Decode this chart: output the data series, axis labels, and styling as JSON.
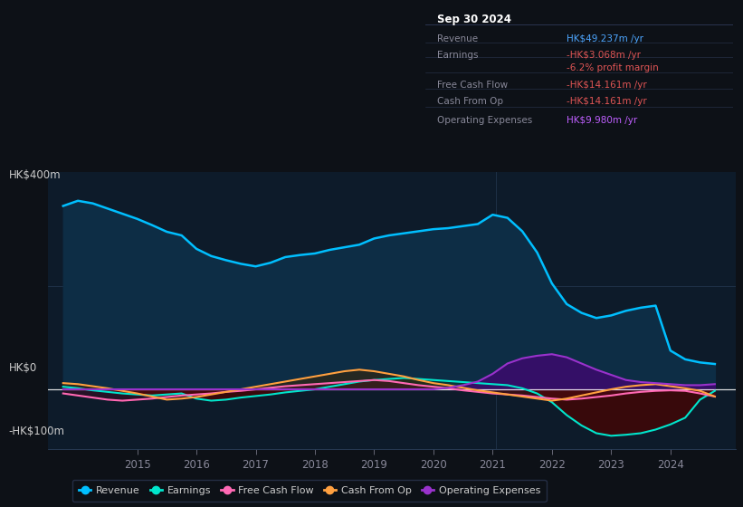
{
  "bg_color": "#0d1117",
  "plot_bg_color": "#0d1b2a",
  "title_box": {
    "date": "Sep 30 2024",
    "rows": [
      {
        "label": "Revenue",
        "value": "HK$49.237m /yr",
        "value_color": "#4da6ff"
      },
      {
        "label": "Earnings",
        "value": "-HK$3.068m /yr",
        "value_color": "#e05555"
      },
      {
        "label": "",
        "value": "-6.2% profit margin",
        "value_color": "#e05555"
      },
      {
        "label": "Free Cash Flow",
        "value": "-HK$14.161m /yr",
        "value_color": "#e05555"
      },
      {
        "label": "Cash From Op",
        "value": "-HK$14.161m /yr",
        "value_color": "#e05555"
      },
      {
        "label": "Operating Expenses",
        "value": "HK$9.980m /yr",
        "value_color": "#bf5fff"
      }
    ]
  },
  "ylabel_top": "HK$400m",
  "ylabel_zero": "HK$0",
  "ylabel_bottom": "-HK$100m",
  "ylim": [
    -115,
    420
  ],
  "xlim_start": 2013.5,
  "xlim_end": 2025.1,
  "years": [
    2013.75,
    2014.0,
    2014.25,
    2014.5,
    2014.75,
    2015.0,
    2015.25,
    2015.5,
    2015.75,
    2016.0,
    2016.25,
    2016.5,
    2016.75,
    2017.0,
    2017.25,
    2017.5,
    2017.75,
    2018.0,
    2018.25,
    2018.5,
    2018.75,
    2019.0,
    2019.25,
    2019.5,
    2019.75,
    2020.0,
    2020.25,
    2020.5,
    2020.75,
    2021.0,
    2021.25,
    2021.5,
    2021.75,
    2022.0,
    2022.25,
    2022.5,
    2022.75,
    2023.0,
    2023.25,
    2023.5,
    2023.75,
    2024.0,
    2024.25,
    2024.5,
    2024.75
  ],
  "revenue": [
    355,
    365,
    360,
    350,
    340,
    330,
    318,
    305,
    298,
    272,
    258,
    250,
    243,
    238,
    245,
    256,
    260,
    263,
    270,
    275,
    280,
    292,
    298,
    302,
    306,
    310,
    312,
    316,
    320,
    338,
    332,
    306,
    265,
    205,
    165,
    148,
    138,
    143,
    152,
    158,
    162,
    75,
    58,
    52,
    49
  ],
  "earnings": [
    5,
    2,
    -2,
    -5,
    -8,
    -10,
    -12,
    -10,
    -8,
    -18,
    -22,
    -20,
    -16,
    -13,
    -10,
    -6,
    -3,
    0,
    5,
    10,
    15,
    18,
    20,
    22,
    20,
    18,
    16,
    14,
    12,
    10,
    8,
    2,
    -8,
    -25,
    -50,
    -70,
    -85,
    -90,
    -88,
    -85,
    -78,
    -68,
    -55,
    -20,
    -3
  ],
  "free_cash_flow": [
    -8,
    -12,
    -16,
    -20,
    -22,
    -20,
    -18,
    -15,
    -12,
    -10,
    -8,
    -5,
    -3,
    0,
    3,
    6,
    8,
    10,
    12,
    14,
    16,
    18,
    16,
    12,
    8,
    5,
    2,
    -2,
    -5,
    -8,
    -10,
    -12,
    -15,
    -18,
    -20,
    -18,
    -15,
    -12,
    -8,
    -5,
    -3,
    -2,
    -3,
    -8,
    -14
  ],
  "cash_from_op": [
    12,
    10,
    6,
    2,
    -3,
    -8,
    -14,
    -20,
    -18,
    -15,
    -10,
    -5,
    0,
    5,
    10,
    15,
    20,
    25,
    30,
    35,
    38,
    35,
    30,
    25,
    18,
    12,
    8,
    3,
    -2,
    -6,
    -10,
    -14,
    -18,
    -22,
    -18,
    -12,
    -6,
    0,
    5,
    8,
    10,
    6,
    2,
    -3,
    -14
  ],
  "operating_expenses": [
    0,
    0,
    0,
    0,
    0,
    0,
    0,
    0,
    0,
    0,
    0,
    0,
    0,
    0,
    0,
    0,
    0,
    0,
    0,
    0,
    0,
    0,
    0,
    0,
    0,
    0,
    3,
    8,
    15,
    30,
    50,
    60,
    65,
    68,
    62,
    50,
    38,
    28,
    18,
    14,
    12,
    10,
    8,
    8,
    10
  ],
  "xticks": [
    2015,
    2016,
    2017,
    2018,
    2019,
    2020,
    2021,
    2022,
    2023,
    2024
  ],
  "line_colors": {
    "revenue": "#00bfff",
    "earnings": "#00e5cc",
    "free_cash_flow": "#ff69b4",
    "cash_from_op": "#ffa040",
    "operating_expenses": "#9932cc"
  }
}
